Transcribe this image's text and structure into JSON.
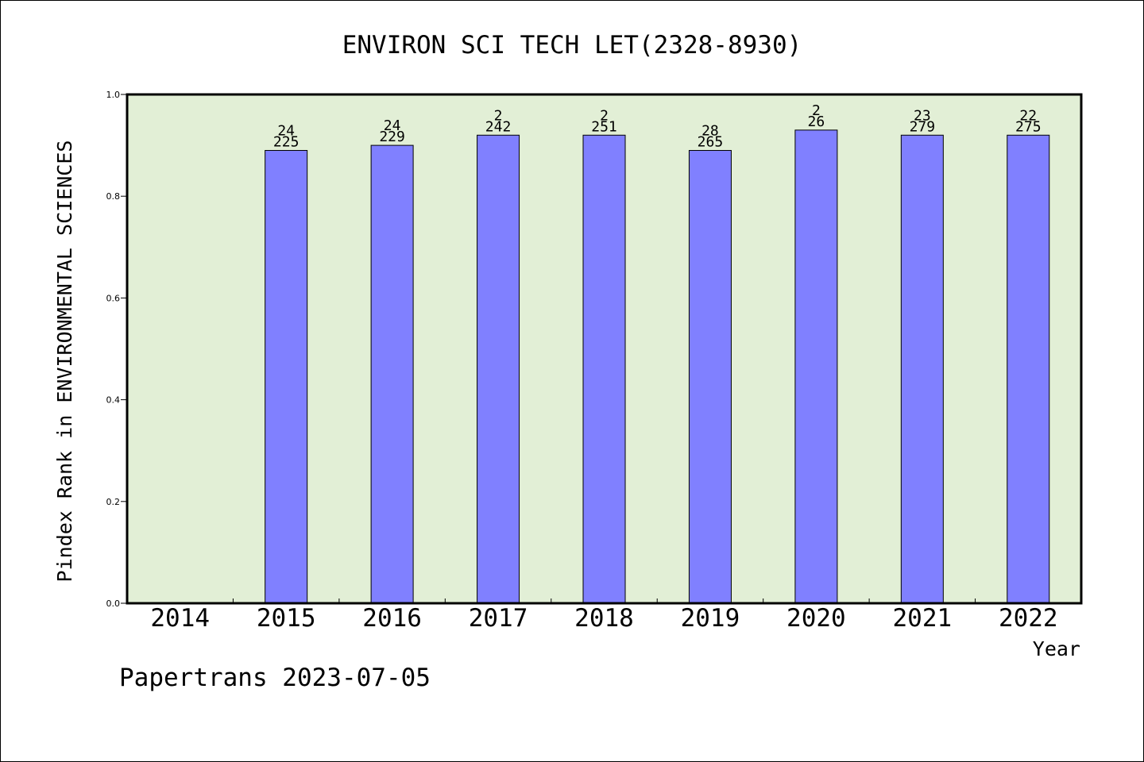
{
  "chart_data": {
    "type": "bar",
    "title": "ENVIRON SCI TECH LET(2328-8930)",
    "xlabel": "Year",
    "ylabel": "Pindex Rank in ENVIRONMENTAL SCIENCES",
    "ylim": [
      0,
      1.0
    ],
    "yticks": [
      "0.0",
      "0.2",
      "0.4",
      "0.6",
      "0.8",
      "1.0"
    ],
    "categories": [
      "2014",
      "2015",
      "2016",
      "2017",
      "2018",
      "2019",
      "2020",
      "2021",
      "2022"
    ],
    "values": [
      null,
      0.89,
      0.9,
      0.92,
      0.92,
      0.89,
      0.93,
      0.92,
      0.92
    ],
    "label_top": [
      "",
      "24",
      "24",
      "2",
      "2",
      "28",
      "2",
      "23",
      "22"
    ],
    "label_bottom": [
      "",
      "225",
      "229",
      "242",
      "251",
      "265",
      "26",
      "279",
      "275"
    ],
    "grid": false,
    "colors": {
      "bar": "#8080ff",
      "plot_bg": "#e2efd6",
      "axis": "#000000"
    }
  },
  "footer": {
    "credit": "Papertrans 2023-07-05"
  }
}
